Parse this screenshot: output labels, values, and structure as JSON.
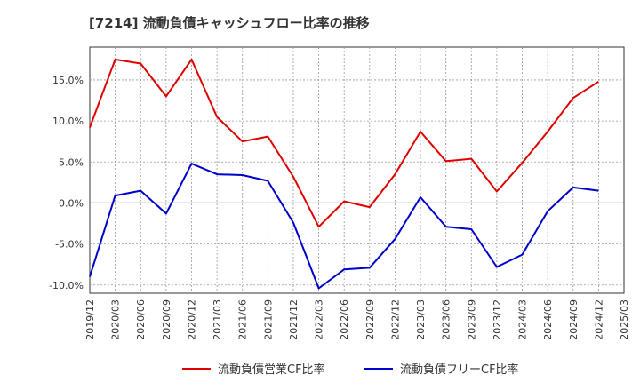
{
  "chart_data": {
    "type": "line",
    "title": "[7214]  流動負債キャッシュフロー比率の推移",
    "x": [
      "2019/12",
      "2020/03",
      "2020/06",
      "2020/09",
      "2020/12",
      "2021/03",
      "2021/06",
      "2021/09",
      "2021/12",
      "2022/03",
      "2022/06",
      "2022/09",
      "2022/12",
      "2023/03",
      "2023/06",
      "2023/09",
      "2023/12",
      "2024/03",
      "2024/06",
      "2024/09",
      "2024/12"
    ],
    "x_ticks": [
      "2019/12",
      "2020/03",
      "2020/06",
      "2020/09",
      "2020/12",
      "2021/03",
      "2021/06",
      "2021/09",
      "2021/12",
      "2022/03",
      "2022/06",
      "2022/09",
      "2022/12",
      "2023/03",
      "2023/06",
      "2023/09",
      "2023/12",
      "2024/03",
      "2024/06",
      "2024/09",
      "2024/12",
      "2025/03"
    ],
    "y_ticks": [
      15,
      10,
      5,
      0,
      -5,
      -10
    ],
    "y_tick_labels": [
      "15.0%",
      "10.0%",
      "5.0%",
      "0.0%",
      "-5.0%",
      "-10.0%"
    ],
    "ylim": [
      -11,
      19
    ],
    "grid": true,
    "legend_position": "bottom",
    "series": [
      {
        "name": "流動負債営業CF比率",
        "color": "#e00000",
        "values": [
          9.2,
          17.5,
          17.0,
          13.0,
          17.5,
          10.5,
          7.5,
          8.1,
          3.2,
          -2.9,
          0.2,
          -0.5,
          3.5,
          8.7,
          5.1,
          5.4,
          1.4,
          4.9,
          8.7,
          12.8,
          14.8
        ]
      },
      {
        "name": "流動負債フリーCF比率",
        "color": "#0000cc",
        "values": [
          -9.0,
          0.9,
          1.5,
          -1.3,
          4.8,
          3.5,
          3.4,
          2.7,
          -2.4,
          -10.4,
          -8.1,
          -7.9,
          -4.4,
          0.7,
          -2.9,
          -3.2,
          -7.8,
          -6.3,
          -1.0,
          1.9,
          1.5
        ]
      }
    ]
  }
}
